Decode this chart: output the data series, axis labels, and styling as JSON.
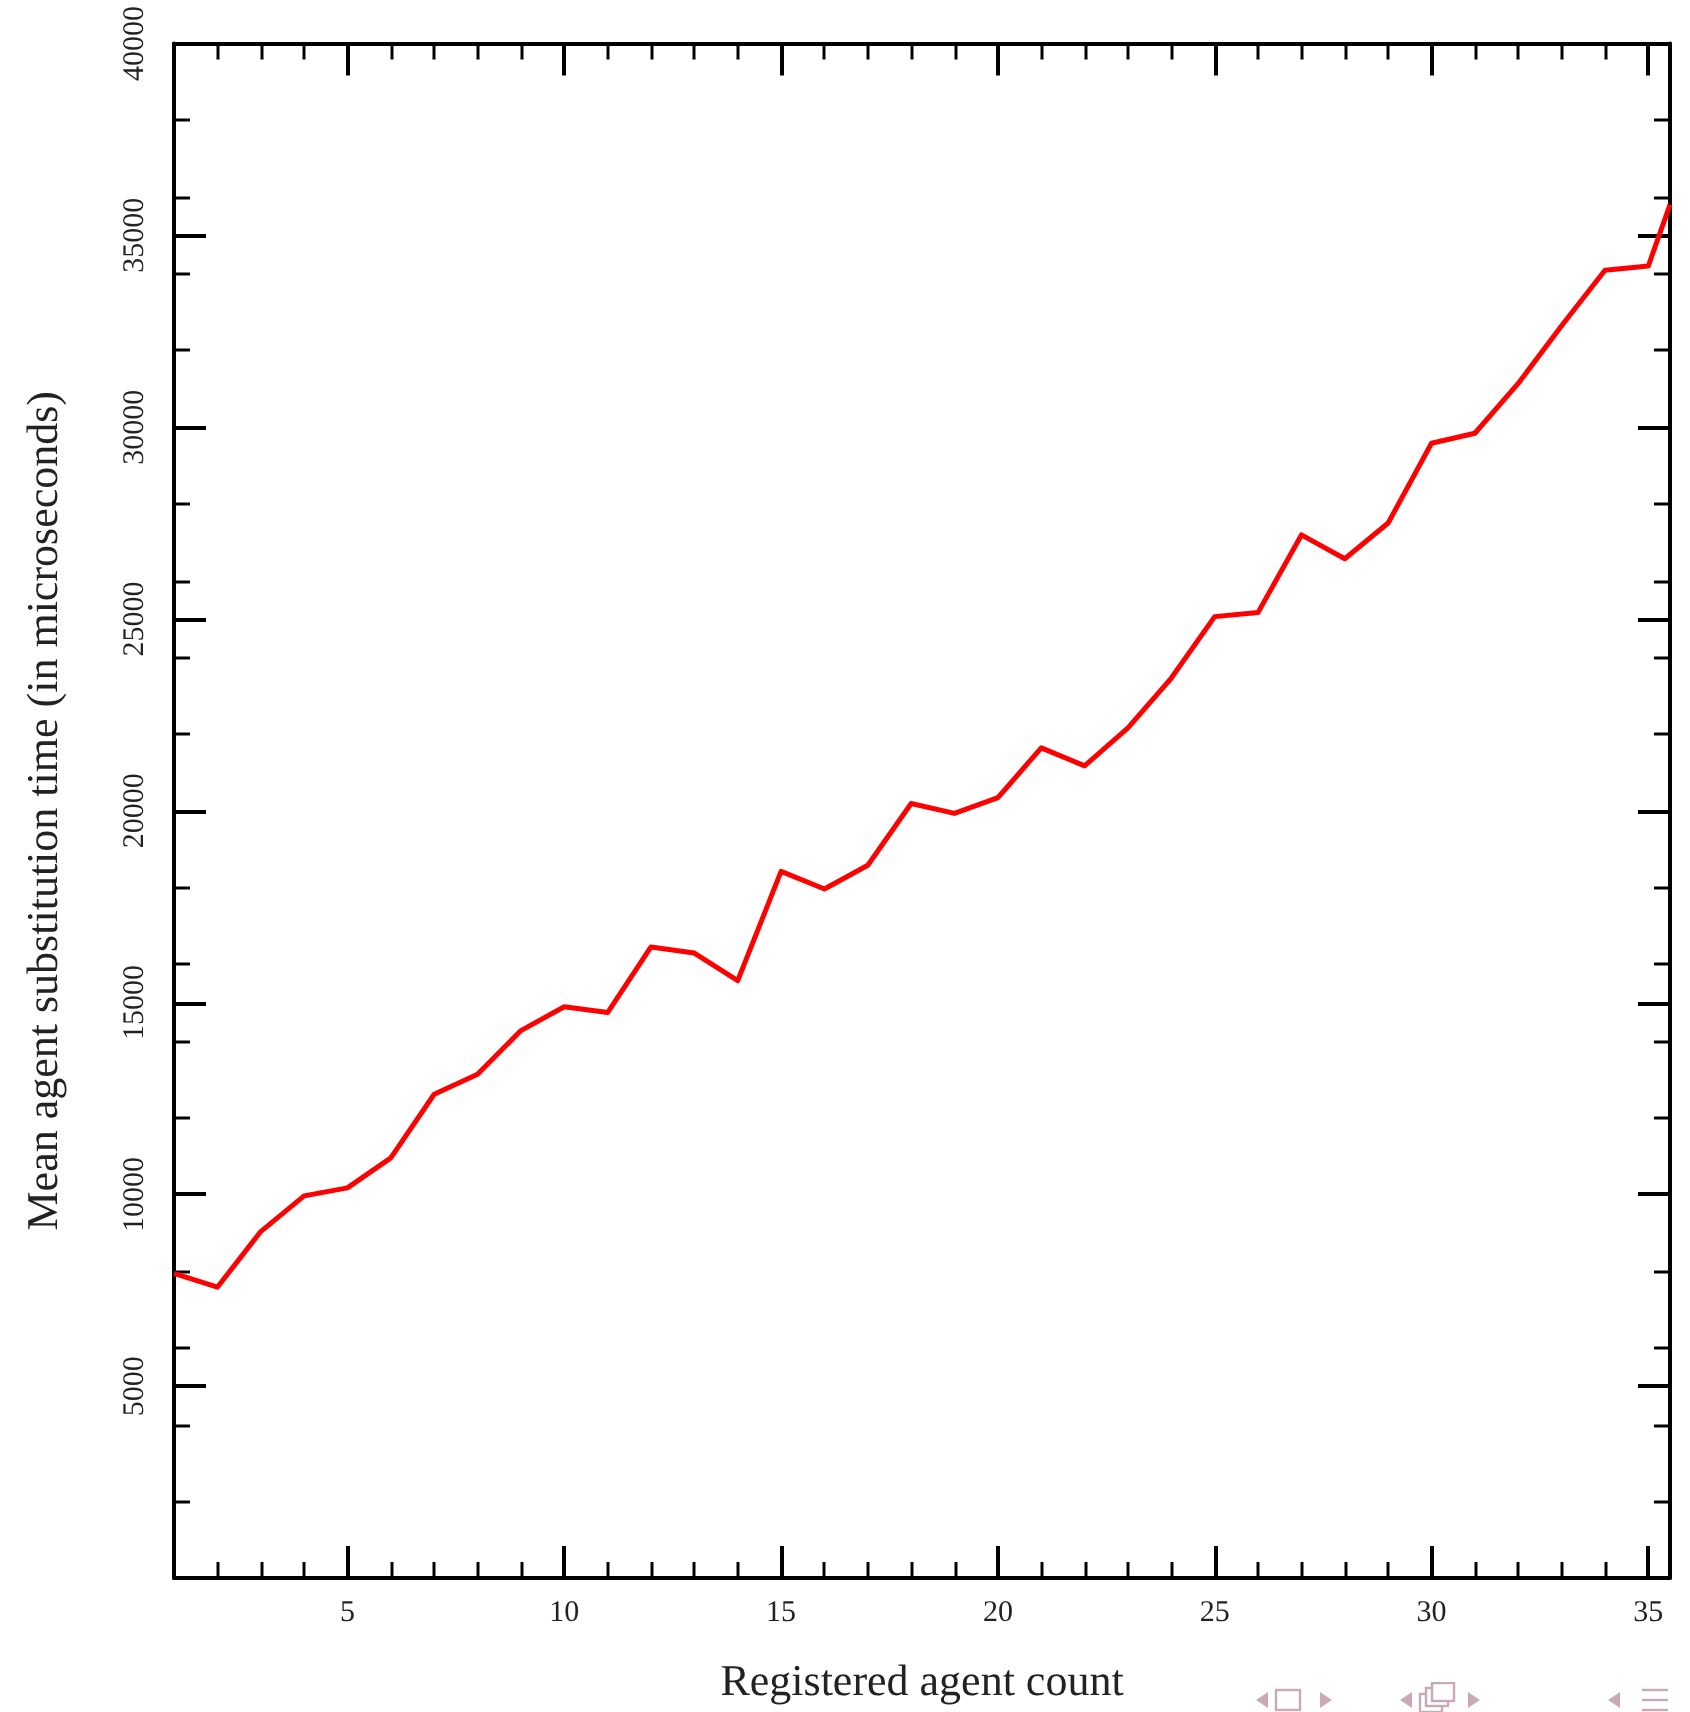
{
  "chart_data": {
    "type": "line",
    "xlabel": "Registered agent count",
    "ylabel": "Mean agent substitution time (in microseconds)",
    "series": [
      {
        "color": "#ff0000",
        "x": [
          1,
          2,
          3,
          4,
          5,
          6,
          7,
          8,
          9,
          10,
          11,
          12,
          13,
          14,
          15,
          16,
          17,
          18,
          19,
          20,
          21,
          22,
          23,
          24,
          25,
          26,
          27,
          28,
          29,
          30,
          31,
          32,
          33,
          34,
          35,
          35.5
        ],
        "values": [
          7940,
          7580,
          9030,
          9960,
          10170,
          10950,
          12610,
          13130,
          14270,
          14890,
          14740,
          16450,
          16290,
          15570,
          18420,
          17960,
          18580,
          20190,
          19930,
          20340,
          21640,
          21170,
          22160,
          23460,
          25060,
          25170,
          27190,
          26570,
          27500,
          29580,
          29840,
          31140,
          32640,
          34090,
          34200,
          35800
        ]
      }
    ],
    "xlim": [
      1,
      35.5
    ],
    "xticks": [
      5,
      10,
      15,
      20,
      25,
      30,
      35
    ],
    "ylim": [
      0,
      40000
    ],
    "yticks": [
      5000,
      10000,
      15000,
      20000,
      25000,
      30000,
      35000,
      40000
    ],
    "marker": "none",
    "line_style": "solid"
  }
}
